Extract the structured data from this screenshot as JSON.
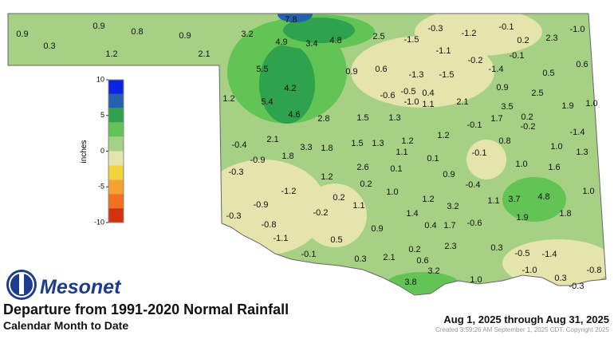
{
  "logo": "Mesonet",
  "title": "Departure from 1991-2020 Normal Rainfall",
  "subtitle": "Calendar Month to Date",
  "date_range": "Aug 1, 2025 through Aug 31, 2025",
  "created": "Created 3:59:26 AM September 1, 2025 CDT. Copyright 2025",
  "legend": {
    "label": "inches",
    "ticks": [
      10,
      5,
      0,
      -5,
      -10
    ],
    "colors": [
      "#0a24e0",
      "#2462b0",
      "#2ea24c",
      "#62c454",
      "#a6d184",
      "#e4e4ac",
      "#f2d43a",
      "#f6a232",
      "#f27020",
      "#d2320e"
    ]
  },
  "stations": [
    "0.9",
    "0.3",
    "0.9",
    "0.8",
    "1.2",
    "0.9",
    "2.1",
    "3.2",
    "7.8",
    "4.9",
    "3.4",
    "4.8",
    "2.5",
    "-1.5",
    "-0.3",
    "-1.2",
    "-0.1",
    "0.2",
    "2.3",
    "-1.0",
    "-1.1",
    "-0.2",
    "-0.1",
    "-1.4",
    "0.5",
    "0.6",
    "5.5",
    "0.9",
    "0.6",
    "-1.3",
    "-1.5",
    "4.2",
    "-0.5",
    "0.4",
    "0.9",
    "2.5",
    "1.2",
    "5.4",
    "-0.6",
    "-1.0",
    "1.1",
    "2.1",
    "3.5",
    "1.9",
    "1.0",
    "4.6",
    "2.8",
    "1.5",
    "1.3",
    "-0.1",
    "1.7",
    "0.2",
    "-0.2",
    "-0.4",
    "2.1",
    "3.3",
    "1.8",
    "1.5",
    "1.3",
    "1.2",
    "1.2",
    "0.8",
    "-1.4",
    "1.1",
    "1.0",
    "1.3",
    "-0.9",
    "1.8",
    "0.1",
    "-0.1",
    "-0.3",
    "2.6",
    "0.1",
    "1.2",
    "0.9",
    "1.0",
    "1.6",
    "0.2",
    "-0.4",
    "-1.2",
    "0.2",
    "1.0",
    "1.2",
    "1.1",
    "3.7",
    "4.8",
    "1.0",
    "-0.9",
    "1.1",
    "3.2",
    "-0.3",
    "-0.2",
    "1.4",
    "1.9",
    "1.8",
    "-0.8",
    "0.4",
    "1.7",
    "-0.6",
    "0.9",
    "-1.1",
    "0.5",
    "2.3",
    "-0.1",
    "0.2",
    "0.3",
    "-0.5",
    "-1.4",
    "0.3",
    "2.1",
    "0.6",
    "3.2",
    "-1.0",
    "-0.8",
    "3.8",
    "1.0",
    "0.3",
    "-0.3"
  ]
}
